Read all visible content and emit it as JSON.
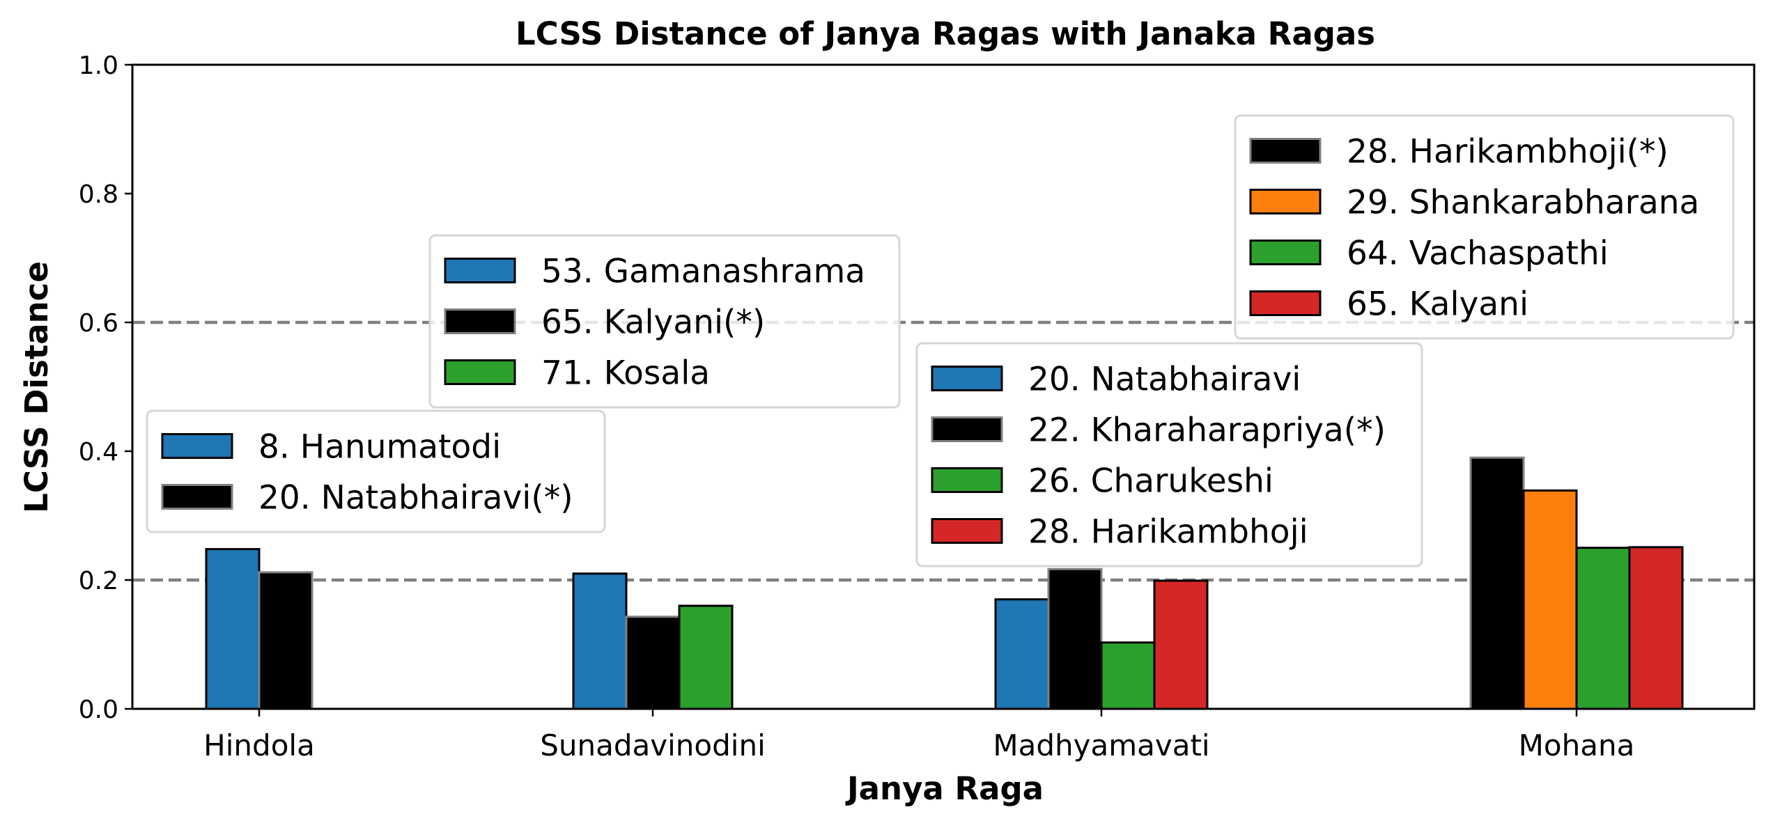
{
  "chart_data": {
    "type": "bar",
    "title": "LCSS Distance of Janya Ragas with Janaka Ragas",
    "xlabel": "Janya Raga",
    "ylabel": "LCSS Distance",
    "ylim": [
      0,
      1.0
    ],
    "yticks": [
      "0.0",
      "0.2",
      "0.4",
      "0.6",
      "0.8",
      "1.0"
    ],
    "grid": false,
    "reference_lines": [
      0.2,
      0.6
    ],
    "groups": [
      {
        "category": "Hindola",
        "legend_position": "middle-left",
        "bars": [
          {
            "label": "8. Hanumatodi",
            "value": 0.248,
            "color": "#1f77b4",
            "edge": "#000000"
          },
          {
            "label": "20. Natabhairavi(*)",
            "value": 0.212,
            "color": "#000000",
            "edge": "#808080"
          }
        ]
      },
      {
        "category": "Sunadavinodini",
        "legend_position": "upper-left-center",
        "bars": [
          {
            "label": "53. Gamanashrama",
            "value": 0.21,
            "color": "#1f77b4",
            "edge": "#000000"
          },
          {
            "label": "65. Kalyani(*)",
            "value": 0.143,
            "color": "#000000",
            "edge": "#808080"
          },
          {
            "label": "71. Kosala",
            "value": 0.16,
            "color": "#2ca02c",
            "edge": "#000000"
          }
        ]
      },
      {
        "category": "Madhyamavati",
        "legend_position": "center",
        "bars": [
          {
            "label": "20. Natabhairavi",
            "value": 0.17,
            "color": "#1f77b4",
            "edge": "#000000"
          },
          {
            "label": "22. Kharaharapriya(*)",
            "value": 0.217,
            "color": "#000000",
            "edge": "#808080"
          },
          {
            "label": "26. Charukeshi",
            "value": 0.103,
            "color": "#2ca02c",
            "edge": "#000000"
          },
          {
            "label": "28. Harikambhoji",
            "value": 0.199,
            "color": "#d62728",
            "edge": "#000000"
          }
        ]
      },
      {
        "category": "Mohana",
        "legend_position": "upper-right",
        "bars": [
          {
            "label": "28. Harikambhoji(*)",
            "value": 0.39,
            "color": "#000000",
            "edge": "#808080"
          },
          {
            "label": "29. Shankarabharana",
            "value": 0.339,
            "color": "#ff7f0e",
            "edge": "#000000"
          },
          {
            "label": "64. Vachaspathi",
            "value": 0.25,
            "color": "#2ca02c",
            "edge": "#000000"
          },
          {
            "label": "65. Kalyani",
            "value": 0.251,
            "color": "#d62728",
            "edge": "#000000"
          }
        ]
      }
    ]
  }
}
